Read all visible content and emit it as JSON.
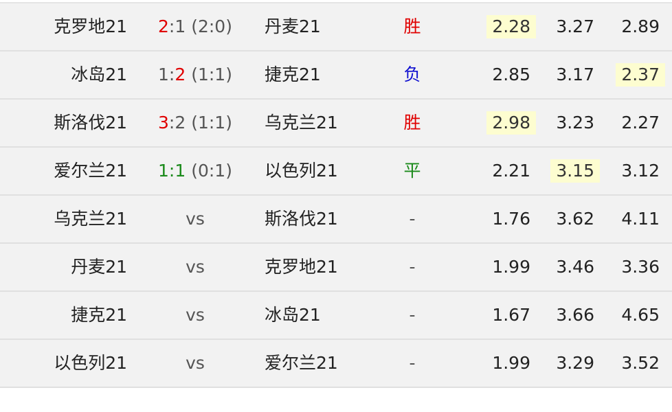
{
  "colors": {
    "win": "#e00000",
    "loss": "#1010d0",
    "draw": "#1a8a1a",
    "highlight": "#fdfdd0",
    "neutral": "#555555"
  },
  "matches": [
    {
      "home": "克罗地21",
      "score": {
        "home_goals": "2",
        "sep": ":",
        "away_goals": "1",
        "half": " (2:0)",
        "home_color": "#e00000",
        "away_color": "#555555"
      },
      "away": "丹麦21",
      "result": "胜",
      "result_color": "#e00000",
      "odds": [
        "2.28",
        "3.27",
        "2.89"
      ],
      "highlight": 0
    },
    {
      "home": "冰岛21",
      "score": {
        "home_goals": "1",
        "sep": ":",
        "away_goals": "2",
        "half": " (1:1)",
        "home_color": "#555555",
        "away_color": "#e00000"
      },
      "away": "捷克21",
      "result": "负",
      "result_color": "#1010d0",
      "odds": [
        "2.85",
        "3.17",
        "2.37"
      ],
      "highlight": 2
    },
    {
      "home": "斯洛伐21",
      "score": {
        "home_goals": "3",
        "sep": ":",
        "away_goals": "2",
        "half": " (1:1)",
        "home_color": "#e00000",
        "away_color": "#555555"
      },
      "away": "乌克兰21",
      "result": "胜",
      "result_color": "#e00000",
      "odds": [
        "2.98",
        "3.23",
        "2.27"
      ],
      "highlight": 0
    },
    {
      "home": "爱尔兰21",
      "score": {
        "home_goals": "1",
        "sep": ":",
        "away_goals": "1",
        "half": " (0:1)",
        "home_color": "#1a8a1a",
        "away_color": "#1a8a1a",
        "sep_color": "#1a8a1a"
      },
      "away": "以色列21",
      "result": "平",
      "result_color": "#1a8a1a",
      "odds": [
        "2.21",
        "3.15",
        "3.12"
      ],
      "highlight": 1
    },
    {
      "home": "乌克兰21",
      "score": {
        "vs": "vs"
      },
      "away": "斯洛伐21",
      "result": "-",
      "result_color": "#555555",
      "odds": [
        "1.76",
        "3.62",
        "4.11"
      ],
      "highlight": -1
    },
    {
      "home": "丹麦21",
      "score": {
        "vs": "vs"
      },
      "away": "克罗地21",
      "result": "-",
      "result_color": "#555555",
      "odds": [
        "1.99",
        "3.46",
        "3.36"
      ],
      "highlight": -1
    },
    {
      "home": "捷克21",
      "score": {
        "vs": "vs"
      },
      "away": "冰岛21",
      "result": "-",
      "result_color": "#555555",
      "odds": [
        "1.67",
        "3.66",
        "4.65"
      ],
      "highlight": -1
    },
    {
      "home": "以色列21",
      "score": {
        "vs": "vs"
      },
      "away": "爱尔兰21",
      "result": "-",
      "result_color": "#555555",
      "odds": [
        "1.99",
        "3.29",
        "3.52"
      ],
      "highlight": -1
    }
  ]
}
